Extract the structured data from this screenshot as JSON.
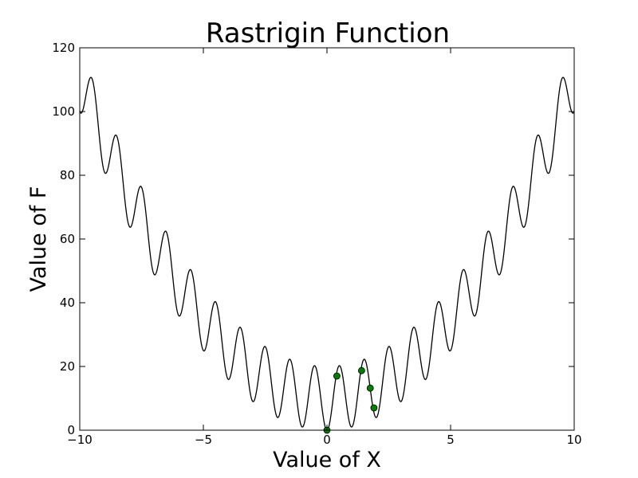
{
  "chart_data": {
    "type": "line",
    "title": "Rastrigin Function",
    "xlabel": "Value of X",
    "ylabel": "Value of F",
    "xlim": [
      -10,
      10
    ],
    "ylim": [
      0,
      120
    ],
    "xticks": [
      -10,
      -5,
      0,
      5,
      10
    ],
    "xtick_labels": [
      "−10",
      "−5",
      "0",
      "5",
      "10"
    ],
    "yticks": [
      0,
      20,
      40,
      60,
      80,
      100,
      120
    ],
    "ytick_labels": [
      "0",
      "20",
      "40",
      "60",
      "80",
      "100",
      "120"
    ],
    "grid": false,
    "series": [
      {
        "kind": "line",
        "color": "#000000",
        "function": "10 + x^2 - 10*cos(2*pi*x)",
        "x_range": [
          -10,
          10
        ]
      },
      {
        "kind": "scatter",
        "color": "#007f00",
        "points": [
          {
            "x": 0.0,
            "y": 0.0
          },
          {
            "x": 0.4,
            "y": 17.0
          },
          {
            "x": 1.4,
            "y": 18.7
          },
          {
            "x": 1.75,
            "y": 13.2
          },
          {
            "x": 1.9,
            "y": 7.0
          }
        ]
      }
    ]
  }
}
